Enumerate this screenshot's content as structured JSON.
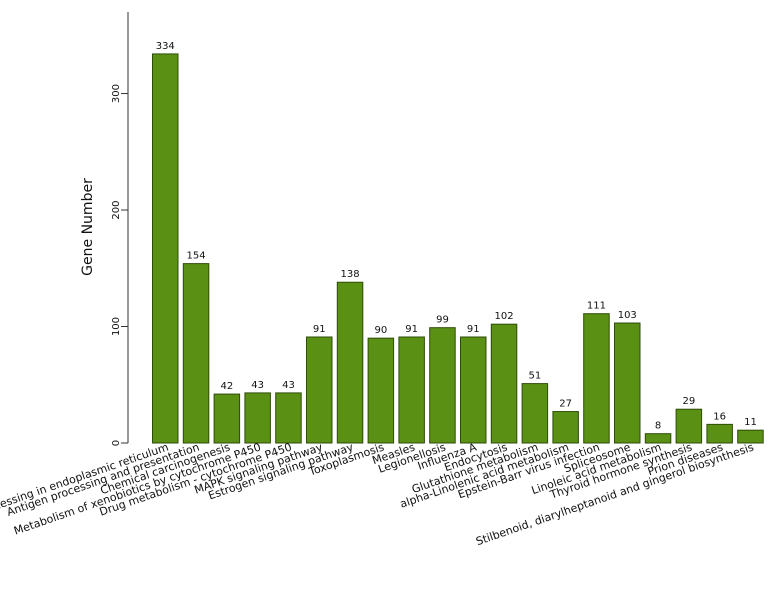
{
  "chart_data": {
    "type": "bar",
    "title": "",
    "xlabel": "",
    "ylabel": "Gene Number",
    "ylim": [
      0,
      370
    ],
    "yticks": [
      0,
      100,
      200,
      300
    ],
    "grid": false,
    "legend": "none",
    "bar_color": "#5a9014",
    "categories": [
      "Protein processing in endoplasmic reticulum",
      "Antigen processing and presentation",
      "Chemical carcinogenesis",
      "Metabolism of xenobiotics by cytochrome P450",
      "Drug metabolism - cytochrome P450",
      "MAPK signaling pathway",
      "Estrogen signaling pathway",
      "Toxoplasmosis",
      "Measles",
      "Legionellosis",
      "Influenza A",
      "Endocytosis",
      "Glutathione metabolism",
      "alpha-Linolenic acid metabolism",
      "Epstein-Barr virus infection",
      "Spliceosome",
      "Linoleic acid metabolism",
      "Thyroid hormone synthesis",
      "Prion diseases",
      "Stilbenoid, diarylheptanoid and gingerol biosynthesis"
    ],
    "values": [
      334,
      154,
      42,
      43,
      43,
      91,
      138,
      90,
      91,
      99,
      91,
      102,
      51,
      27,
      111,
      103,
      8,
      29,
      16,
      11
    ]
  }
}
